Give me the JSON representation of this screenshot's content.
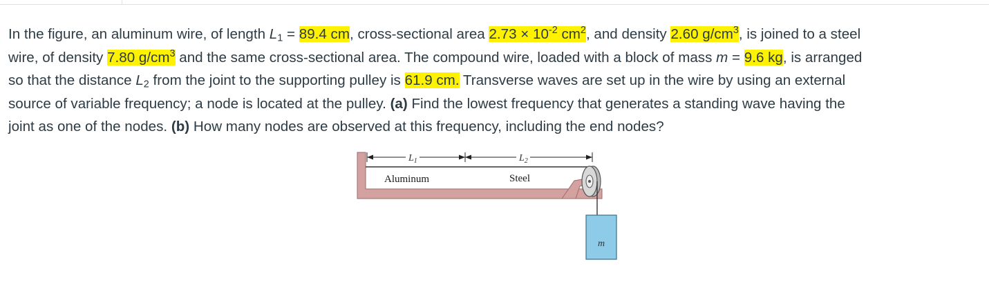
{
  "problem": {
    "line1": {
      "t1": "In the figure, an aluminum wire, of length ",
      "var_L": "L",
      "sub_1": "1",
      "t2": " = ",
      "length1": "89.4 cm",
      "t3": ", cross-sectional area ",
      "area_base": "2.73 × 10",
      "area_exp": "-2",
      "area_unit": " cm",
      "area_unit_exp": "2",
      "t4": ", and density ",
      "density_al": "2.60 g/cm",
      "density_al_exp": "3",
      "t5": ", is joined to a steel"
    },
    "line2": {
      "t1": "wire, of density ",
      "density_steel": "7.80 g/cm",
      "density_steel_exp": "3",
      "t2": " and the same cross-sectional area. The compound wire, loaded with a block of mass ",
      "var_m": "m",
      "t3": " = ",
      "mass": "9.6 kg",
      "t4": ", is arranged"
    },
    "line3": {
      "t1": "so that the distance ",
      "var_L": "L",
      "sub_2": "2",
      "t2": " from the joint to the supporting pulley is ",
      "length2": "61.9 cm.",
      "t3": " Transverse waves are set up in the wire by using an external"
    },
    "line4": {
      "t1": "source of variable frequency; a node is located at the pulley. ",
      "part_a": "(a)",
      "t2": " Find the lowest frequency that generates a standing wave having the"
    },
    "line5": {
      "t1": "joint as one of the nodes. ",
      "part_b": "(b)",
      "t2": " How many nodes are observed at this frequency, including the end nodes?"
    }
  },
  "figure": {
    "label_L1": "L",
    "label_L1_sub": "1",
    "label_L2": "L",
    "label_L2_sub": "2",
    "label_aluminum": "Aluminum",
    "label_steel": "Steel",
    "label_mass": "m",
    "colors": {
      "support": "#d4a1a1",
      "support_edge": "#9e6b6b",
      "block": "#8ecbe8",
      "block_edge": "#3b6f86",
      "pulley": "#c9c9c9"
    }
  }
}
